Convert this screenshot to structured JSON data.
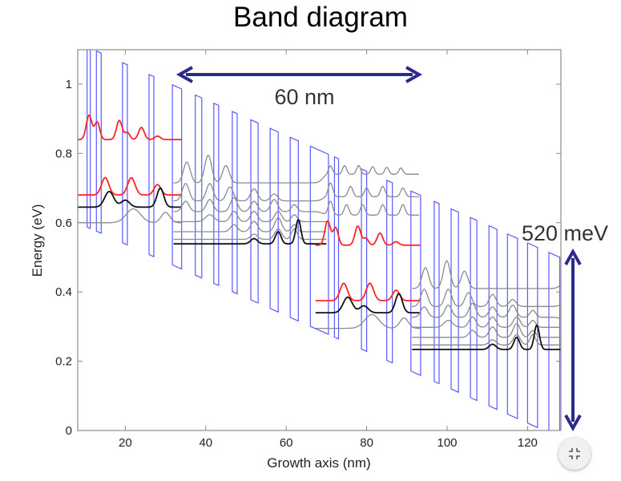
{
  "chart_data": {
    "type": "line",
    "title": "Band diagram",
    "xlabel": "Growth axis (nm)",
    "ylabel": "Energy (eV)",
    "xlim": [
      8,
      128
    ],
    "ylim": [
      0,
      1.1
    ],
    "xticks": [
      20,
      40,
      60,
      80,
      100,
      120
    ],
    "xtick_labels": [
      "20",
      "40",
      "60",
      "80",
      "100",
      "120"
    ],
    "yticks": [
      0,
      0.2,
      0.4,
      0.6,
      0.8,
      1.0
    ],
    "ytick_labels": [
      "0",
      "0.2",
      "0.4",
      "0.6",
      "0.8",
      "1"
    ],
    "conduction_band": {
      "offset_at_0nm_eV": 0.642,
      "slope_eV_per_nm": -0.00517,
      "barrier_height_eV": 0.52
    },
    "barriers_nm": [
      [
        10.5,
        11.3
      ],
      [
        12.8,
        14.0
      ],
      [
        19.3,
        20.5
      ],
      [
        25.9,
        27.1
      ],
      [
        31.7,
        34.0
      ],
      [
        37.4,
        39.0
      ],
      [
        42.0,
        43.2
      ],
      [
        46.6,
        47.8
      ],
      [
        51.2,
        53.0
      ],
      [
        56.0,
        58.0
      ],
      [
        61.0,
        63.0
      ],
      [
        66.0,
        70.5
      ],
      [
        72.0,
        73.0
      ],
      [
        78.7,
        80.0
      ],
      [
        85.0,
        86.4
      ],
      [
        91.0,
        93.4
      ],
      [
        96.8,
        98.0
      ],
      [
        101.0,
        102.8
      ],
      [
        105.8,
        107.4
      ],
      [
        110.4,
        112.4
      ],
      [
        115.0,
        117.5
      ],
      [
        120.0,
        122.5
      ],
      [
        125.3,
        128.0
      ]
    ],
    "periods": [
      {
        "dx_nm": 0,
        "dE_eV": 0
      },
      {
        "dx_nm": 59.3,
        "dE_eV": -0.305
      }
    ],
    "states": [
      {
        "color": "red",
        "base": 0.84,
        "x": [
          8,
          34
        ],
        "bumps": [
          [
            11,
            0.07,
            1
          ],
          [
            13,
            0.05,
            0.9
          ],
          [
            18.5,
            0.055,
            1
          ],
          [
            20.5,
            0.02,
            0.9
          ],
          [
            24,
            0.035,
            1
          ],
          [
            28,
            0.01,
            1
          ]
        ]
      },
      {
        "color": "red",
        "base": 0.68,
        "x": [
          8,
          34
        ],
        "bumps": [
          [
            15,
            0.05,
            1.3
          ],
          [
            21.5,
            0.05,
            1.3
          ],
          [
            28,
            0.03,
            1.2
          ]
        ]
      },
      {
        "color": "black",
        "base": 0.645,
        "x": [
          8,
          34
        ],
        "bumps": [
          [
            16,
            0.045,
            1.6
          ],
          [
            20,
            0.02,
            1.5
          ],
          [
            28.7,
            0.055,
            1.2
          ]
        ]
      },
      {
        "color": "gray",
        "base": 0.6,
        "x": [
          8,
          34
        ],
        "bumps": [
          [
            22,
            0.04,
            2.5
          ],
          [
            30,
            0.03,
            1.5
          ]
        ]
      },
      {
        "color": "gray",
        "base": 0.715,
        "x": [
          32,
          93
        ],
        "step": [
          69,
          0.025
        ],
        "bumps": [
          [
            35.3,
            0.06,
            1.2
          ],
          [
            40.6,
            0.08,
            1.2
          ],
          [
            45,
            0.05,
            1.2
          ],
          [
            71,
            0.025,
            0.7
          ],
          [
            74.5,
            0.025,
            0.7
          ],
          [
            78,
            0.025,
            0.7
          ],
          [
            81.5,
            0.022,
            0.7
          ],
          [
            85,
            0.02,
            0.7
          ],
          [
            88.5,
            0.018,
            0.7
          ]
        ]
      },
      {
        "color": "gray",
        "base": 0.663,
        "x": [
          32,
          93
        ],
        "step": [
          69,
          0.012
        ],
        "bumps": [
          [
            35,
            0.05,
            1.2
          ],
          [
            41,
            0.05,
            1.2
          ],
          [
            46,
            0.04,
            1.2
          ],
          [
            52,
            0.035,
            1.2
          ],
          [
            57,
            0.02,
            1.2
          ],
          [
            71,
            0.04,
            0.8
          ],
          [
            76,
            0.03,
            0.8
          ],
          [
            80,
            0.025,
            0.8
          ],
          [
            84,
            0.03,
            0.8
          ],
          [
            89,
            0.025,
            0.8
          ]
        ]
      },
      {
        "color": "gray",
        "base": 0.632,
        "x": [
          32,
          93
        ],
        "step": [
          69,
          -0.01
        ],
        "bumps": [
          [
            35,
            0.03,
            1.2
          ],
          [
            41,
            0.035,
            1.2
          ],
          [
            47,
            0.04,
            1.2
          ],
          [
            52,
            0.03,
            1.2
          ],
          [
            57,
            0.035,
            1.2
          ],
          [
            62,
            0.02,
            1
          ],
          [
            71,
            0.04,
            0.8
          ],
          [
            75,
            0.03,
            0.8
          ],
          [
            79,
            0.03,
            0.8
          ],
          [
            84,
            0.03,
            0.8
          ],
          [
            89,
            0.03,
            0.8
          ]
        ]
      },
      {
        "color": "gray",
        "base": 0.603,
        "x": [
          32,
          70
        ],
        "bumps": [
          [
            41,
            0.02,
            1.5
          ],
          [
            47,
            0.03,
            1.2
          ],
          [
            52,
            0.03,
            1.2
          ],
          [
            58,
            0.03,
            1.2
          ],
          [
            62,
            0.02,
            1
          ]
        ]
      },
      {
        "color": "gray",
        "base": 0.574,
        "x": [
          32,
          70
        ],
        "bumps": [
          [
            47,
            0.02,
            1.2
          ],
          [
            52,
            0.03,
            1.2
          ],
          [
            58,
            0.04,
            1.2
          ],
          [
            62,
            0.02,
            1
          ]
        ]
      },
      {
        "color": "gray",
        "base": 0.552,
        "x": [
          32,
          70
        ],
        "bumps": [
          [
            52,
            0.015,
            1.2
          ],
          [
            58,
            0.03,
            1.2
          ],
          [
            62,
            0.03,
            1
          ]
        ]
      },
      {
        "color": "black",
        "base": 0.539,
        "x": [
          32,
          70
        ],
        "bumps": [
          [
            52,
            0.015,
            1.2
          ],
          [
            58,
            0.035,
            1
          ],
          [
            63,
            0.07,
            0.9
          ]
        ]
      }
    ],
    "colors": {
      "barrier": "#5a5aff",
      "red": "#ff2424",
      "black": "#111111",
      "gray": "#8a8a8a",
      "arrow": "#2b2b8c",
      "frame": "#8c8c8c"
    },
    "annotations": {
      "period_label": "60 nm",
      "drop_label": "520 meV"
    }
  },
  "controls": {
    "collapse_icon": "exit-fullscreen-icon"
  }
}
